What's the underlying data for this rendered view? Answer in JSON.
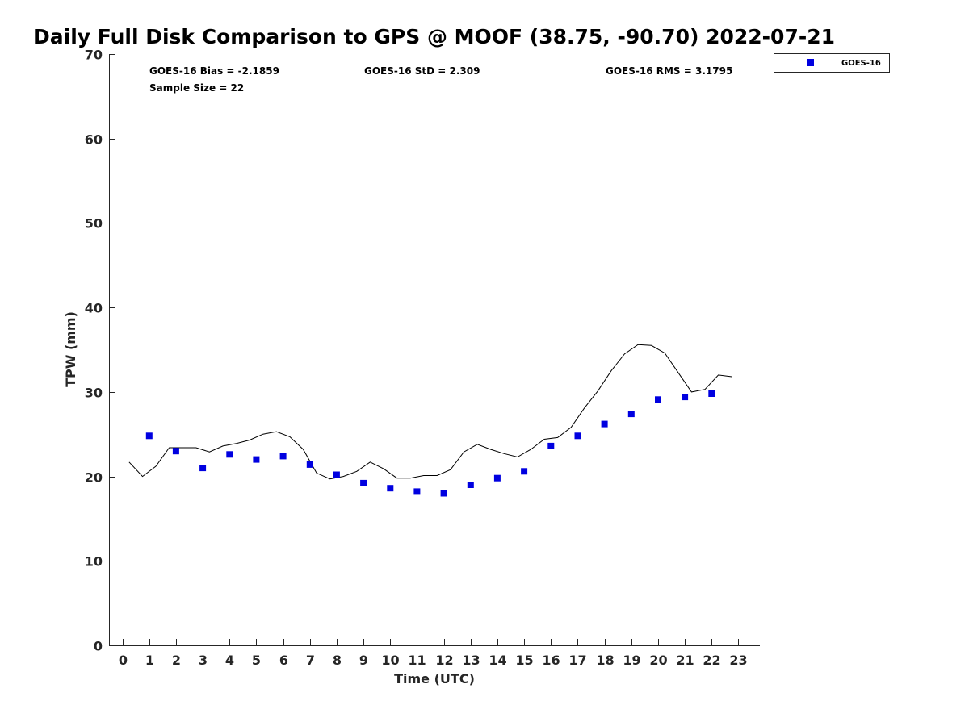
{
  "chart_data": {
    "type": "scatter",
    "title": "Daily Full Disk Comparison to GPS @ MOOF (38.75, -90.70) 2022-07-21",
    "xlabel": "Time (UTC)",
    "ylabel": "TPW (mm)",
    "xlim": [
      -0.5,
      23.8
    ],
    "ylim": [
      0,
      70
    ],
    "xticks": [
      "0",
      "1",
      "2",
      "3",
      "4",
      "5",
      "6",
      "7",
      "8",
      "9",
      "10",
      "11",
      "12",
      "13",
      "14",
      "15",
      "16",
      "17",
      "18",
      "19",
      "20",
      "21",
      "22",
      "23"
    ],
    "yticks": [
      "0",
      "10",
      "20",
      "30",
      "40",
      "50",
      "60",
      "70"
    ],
    "grid": false,
    "legend_placement": "outside-top-right",
    "stats": {
      "bias": "GOES-16 Bias = -2.1859",
      "std": "GOES-16 StD = 2.309",
      "rms": "GOES-16 RMS = 3.1795",
      "sample_size": "Sample Size = 22"
    },
    "series": [
      {
        "name": "GOES-16",
        "kind": "scatter",
        "color": "#0000e0",
        "x": [
          1,
          2,
          3,
          4,
          5,
          6,
          7,
          8,
          9,
          10,
          11,
          12,
          13,
          14,
          15,
          16,
          17,
          18,
          19,
          20,
          21,
          22
        ],
        "y": [
          24.8,
          23.0,
          21.0,
          22.6,
          22.0,
          22.4,
          21.4,
          20.2,
          19.2,
          18.6,
          18.2,
          18.0,
          19.0,
          19.8,
          20.6,
          23.6,
          24.8,
          26.2,
          27.4,
          29.1,
          29.4,
          29.8
        ]
      },
      {
        "name": "",
        "kind": "line",
        "color": "#000000",
        "x": [
          0.25,
          0.75,
          1.25,
          1.75,
          2.25,
          2.75,
          3.25,
          3.75,
          4.25,
          4.75,
          5.25,
          5.75,
          6.25,
          6.75,
          7.25,
          7.75,
          8.25,
          8.75,
          9.25,
          9.75,
          10.25,
          10.75,
          11.25,
          11.75,
          12.25,
          12.75,
          13.25,
          13.75,
          14.25,
          14.75,
          15.25,
          15.75,
          16.25,
          16.75,
          17.25,
          17.75,
          18.25,
          18.75,
          19.25,
          19.75,
          20.25,
          20.75,
          21.25,
          21.75,
          22.25,
          22.75
        ],
        "y": [
          21.7,
          20.0,
          21.2,
          23.4,
          23.4,
          23.4,
          22.9,
          23.6,
          23.9,
          24.3,
          25.0,
          25.3,
          24.7,
          23.2,
          20.4,
          19.7,
          20.0,
          20.6,
          21.7,
          20.9,
          19.8,
          19.8,
          20.1,
          20.1,
          20.8,
          22.9,
          23.8,
          23.2,
          22.7,
          22.3,
          23.2,
          24.4,
          24.6,
          25.8,
          28.1,
          30.1,
          32.5,
          34.5,
          35.6,
          35.5,
          34.6,
          32.3,
          30.0,
          30.3,
          32.0,
          31.8
        ]
      }
    ]
  }
}
